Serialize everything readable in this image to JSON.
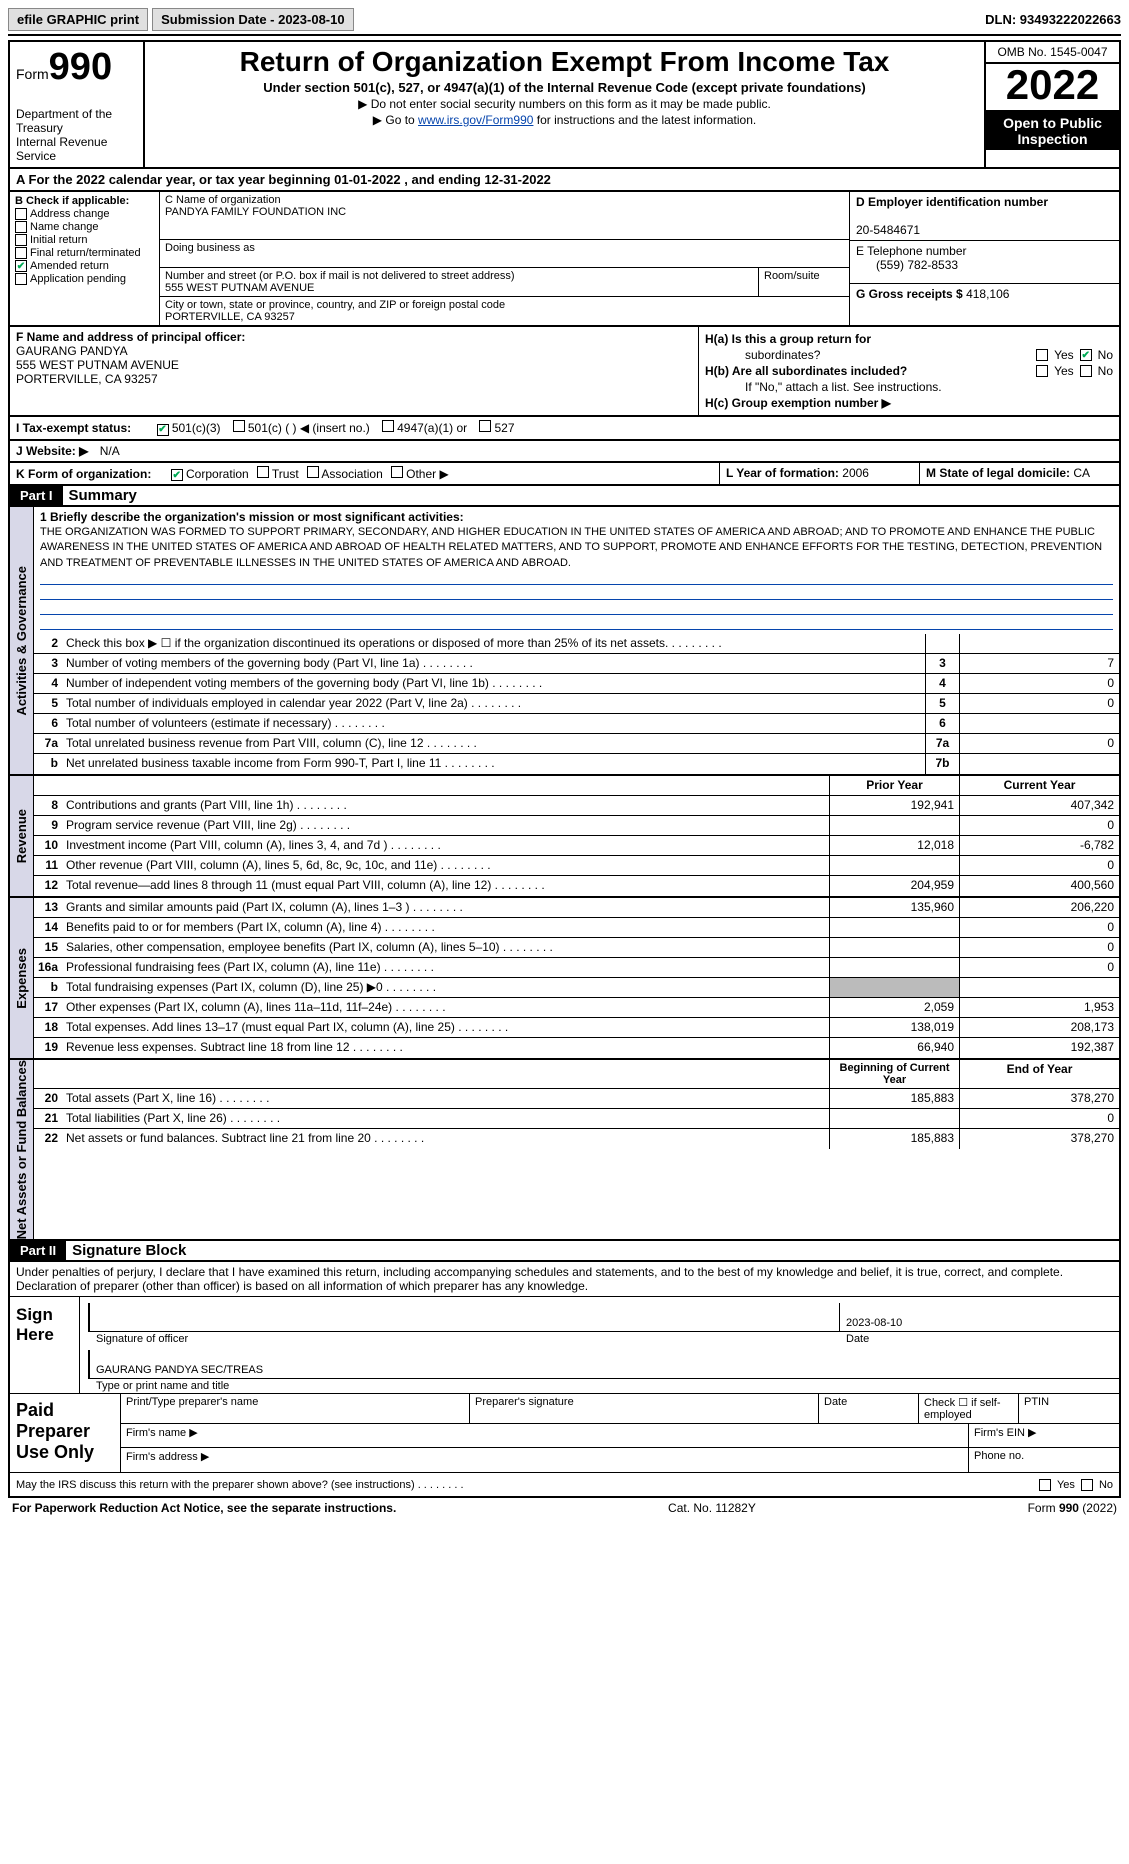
{
  "topbar": {
    "efile_label": "efile GRAPHIC print",
    "submission_label": "Submission Date - 2023-08-10",
    "dln_label": "DLN: 93493222022663"
  },
  "header": {
    "form_label": "Form",
    "form_number": "990",
    "dept1": "Department of the Treasury",
    "dept2": "Internal Revenue Service",
    "title": "Return of Organization Exempt From Income Tax",
    "subtitle": "Under section 501(c), 527, or 4947(a)(1) of the Internal Revenue Code (except private foundations)",
    "note1": "▶ Do not enter social security numbers on this form as it may be made public.",
    "note2_pre": "▶ Go to ",
    "note2_link": "www.irs.gov/Form990",
    "note2_post": " for instructions and the latest information.",
    "omb": "OMB No. 1545-0047",
    "year": "2022",
    "open1": "Open to Public",
    "open2": "Inspection"
  },
  "row_a": "A  For the 2022 calendar year, or tax year beginning 01-01-2022   , and ending 12-31-2022",
  "col_b": {
    "label": "B Check if applicable:",
    "items": [
      "Address change",
      "Name change",
      "Initial return",
      "Final return/terminated",
      "Amended return",
      "Application pending"
    ],
    "checked_idx": 4
  },
  "col_c": {
    "name_label": "C Name of organization",
    "name_value": "PANDYA FAMILY FOUNDATION INC",
    "dba_label": "Doing business as",
    "dba_value": "",
    "street_label": "Number and street (or P.O. box if mail is not delivered to street address)",
    "street_value": "555 WEST PUTNAM AVENUE",
    "room_label": "Room/suite",
    "city_label": "City or town, state or province, country, and ZIP or foreign postal code",
    "city_value": "PORTERVILLE, CA  93257"
  },
  "col_d": {
    "label": "D Employer identification number",
    "value": "20-5484671"
  },
  "col_e": {
    "label": "E Telephone number",
    "value": "(559) 782-8533"
  },
  "col_g": {
    "label": "G Gross receipts $",
    "value": "418,106"
  },
  "col_f": {
    "label": "F  Name and address of principal officer:",
    "name": "GAURANG PANDYA",
    "addr1": "555 WEST PUTNAM AVENUE",
    "addr2": "PORTERVILLE, CA  93257"
  },
  "col_h": {
    "a_label": "H(a)  Is this a group return for",
    "a_label2": "subordinates?",
    "b_label": "H(b)  Are all subordinates included?",
    "note": "If \"No,\" attach a list. See instructions.",
    "c_label": "H(c)  Group exemption number ▶",
    "yes": "Yes",
    "no": "No",
    "a_checked": "no"
  },
  "row_i": {
    "label": "I  Tax-exempt status:",
    "opts": [
      "501(c)(3)",
      "501(c) (  ) ◀ (insert no.)",
      "4947(a)(1) or",
      "527"
    ],
    "checked_idx": 0
  },
  "row_j": {
    "label": "J  Website: ▶",
    "value": "N/A"
  },
  "row_k": {
    "label": "K Form of organization:",
    "opts": [
      "Corporation",
      "Trust",
      "Association",
      "Other ▶"
    ],
    "checked_idx": 0
  },
  "row_l": {
    "label": "L Year of formation:",
    "value": "2006"
  },
  "row_m": {
    "label": "M State of legal domicile:",
    "value": "CA"
  },
  "part1": {
    "hdr": "Part I",
    "title": "Summary"
  },
  "mission": {
    "label": "1  Briefly describe the organization's mission or most significant activities:",
    "text": "THE ORGANIZATION WAS FORMED TO SUPPORT PRIMARY, SECONDARY, AND HIGHER EDUCATION IN THE UNITED STATES OF AMERICA AND ABROAD; AND TO PROMOTE AND ENHANCE THE PUBLIC AWARENESS IN THE UNITED STATES OF AMERICA AND ABROAD OF HEALTH RELATED MATTERS, AND TO SUPPORT, PROMOTE AND ENHANCE EFFORTS FOR THE TESTING, DETECTION, PREVENTION AND TREATMENT OF PREVENTABLE ILLNESSES IN THE UNITED STATES OF AMERICA AND ABROAD."
  },
  "vtabs": {
    "act": "Activities & Governance",
    "rev": "Revenue",
    "exp": "Expenses",
    "net": "Net Assets or Fund Balances"
  },
  "lines_act": [
    {
      "n": "2",
      "t": "Check this box ▶ ☐  if the organization discontinued its operations or disposed of more than 25% of its net assets.",
      "box": "",
      "val": ""
    },
    {
      "n": "3",
      "t": "Number of voting members of the governing body (Part VI, line 1a)",
      "box": "3",
      "val": "7"
    },
    {
      "n": "4",
      "t": "Number of independent voting members of the governing body (Part VI, line 1b)",
      "box": "4",
      "val": "0"
    },
    {
      "n": "5",
      "t": "Total number of individuals employed in calendar year 2022 (Part V, line 2a)",
      "box": "5",
      "val": "0"
    },
    {
      "n": "6",
      "t": "Total number of volunteers (estimate if necessary)",
      "box": "6",
      "val": ""
    },
    {
      "n": "7a",
      "t": "Total unrelated business revenue from Part VIII, column (C), line 12",
      "box": "7a",
      "val": "0"
    },
    {
      "n": "b",
      "t": "Net unrelated business taxable income from Form 990-T, Part I, line 11",
      "box": "7b",
      "val": ""
    }
  ],
  "rev_hdr": {
    "prior": "Prior Year",
    "current": "Current Year"
  },
  "lines_rev": [
    {
      "n": "8",
      "t": "Contributions and grants (Part VIII, line 1h)",
      "p": "192,941",
      "c": "407,342"
    },
    {
      "n": "9",
      "t": "Program service revenue (Part VIII, line 2g)",
      "p": "",
      "c": "0"
    },
    {
      "n": "10",
      "t": "Investment income (Part VIII, column (A), lines 3, 4, and 7d )",
      "p": "12,018",
      "c": "-6,782"
    },
    {
      "n": "11",
      "t": "Other revenue (Part VIII, column (A), lines 5, 6d, 8c, 9c, 10c, and 11e)",
      "p": "",
      "c": "0"
    },
    {
      "n": "12",
      "t": "Total revenue—add lines 8 through 11 (must equal Part VIII, column (A), line 12)",
      "p": "204,959",
      "c": "400,560"
    }
  ],
  "lines_exp": [
    {
      "n": "13",
      "t": "Grants and similar amounts paid (Part IX, column (A), lines 1–3 )",
      "p": "135,960",
      "c": "206,220"
    },
    {
      "n": "14",
      "t": "Benefits paid to or for members (Part IX, column (A), line 4)",
      "p": "",
      "c": "0"
    },
    {
      "n": "15",
      "t": "Salaries, other compensation, employee benefits (Part IX, column (A), lines 5–10)",
      "p": "",
      "c": "0"
    },
    {
      "n": "16a",
      "t": "Professional fundraising fees (Part IX, column (A), line 11e)",
      "p": "",
      "c": "0"
    },
    {
      "n": "b",
      "t": "Total fundraising expenses (Part IX, column (D), line 25) ▶0",
      "p": "grey",
      "c": "grey"
    },
    {
      "n": "17",
      "t": "Other expenses (Part IX, column (A), lines 11a–11d, 11f–24e)",
      "p": "2,059",
      "c": "1,953"
    },
    {
      "n": "18",
      "t": "Total expenses. Add lines 13–17 (must equal Part IX, column (A), line 25)",
      "p": "138,019",
      "c": "208,173"
    },
    {
      "n": "19",
      "t": "Revenue less expenses. Subtract line 18 from line 12",
      "p": "66,940",
      "c": "192,387"
    }
  ],
  "net_hdr": {
    "prior": "Beginning of Current Year",
    "current": "End of Year"
  },
  "lines_net": [
    {
      "n": "20",
      "t": "Total assets (Part X, line 16)",
      "p": "185,883",
      "c": "378,270"
    },
    {
      "n": "21",
      "t": "Total liabilities (Part X, line 26)",
      "p": "",
      "c": "0"
    },
    {
      "n": "22",
      "t": "Net assets or fund balances. Subtract line 21 from line 20",
      "p": "185,883",
      "c": "378,270"
    }
  ],
  "part2": {
    "hdr": "Part II",
    "title": "Signature Block"
  },
  "sig": {
    "intro": "Under penalties of perjury, I declare that I have examined this return, including accompanying schedules and statements, and to the best of my knowledge and belief, it is true, correct, and complete. Declaration of preparer (other than officer) is based on all information of which preparer has any knowledge.",
    "sign_here": "Sign Here",
    "sig_label": "Signature of officer",
    "date_label": "Date",
    "date_value": "2023-08-10",
    "name_label": "Type or print name and title",
    "name_value": "GAURANG PANDYA  SEC/TREAS"
  },
  "paid": {
    "label": "Paid Preparer Use Only",
    "r1": [
      "Print/Type preparer's name",
      "Preparer's signature",
      "Date",
      "Check ☐ if self-employed",
      "PTIN"
    ],
    "r2_label": "Firm's name  ▶",
    "r2b": "Firm's EIN ▶",
    "r3_label": "Firm's address ▶",
    "r3b": "Phone no."
  },
  "discuss": {
    "text": "May the IRS discuss this return with the preparer shown above? (see instructions)",
    "yes": "Yes",
    "no": "No"
  },
  "footer": {
    "left": "For Paperwork Reduction Act Notice, see the separate instructions.",
    "center": "Cat. No. 11282Y",
    "right": "Form 990 (2022)"
  },
  "colors": {
    "link": "#0645ad",
    "section_bg": "#000000",
    "vtab_bg": "#d8d8e8",
    "grey_cell": "#bbbbbb"
  }
}
